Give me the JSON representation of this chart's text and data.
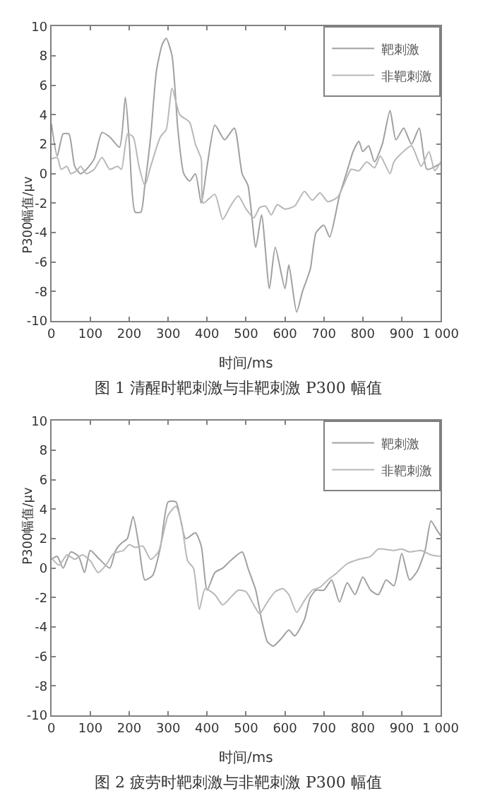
{
  "chart_data": [
    {
      "type": "line",
      "title": "图 1 清醒时靶刺激与非靶刺激 P300 幅值",
      "xlabel": "时间/ms",
      "ylabel": "P300幅值/μv",
      "legend": "top right",
      "marker": "none",
      "line_style": "solid",
      "xlim": [
        0,
        1000
      ],
      "ylim": [
        -10,
        10
      ],
      "xticks": [
        0,
        100,
        200,
        300,
        400,
        500,
        600,
        700,
        800,
        900,
        {
          "value": 1000,
          "label": "1 000"
        }
      ],
      "yticks": [
        -10,
        -8,
        -6,
        -4,
        -2,
        0,
        2,
        4,
        6,
        8,
        10
      ],
      "series": [
        {
          "name": "靶刺激",
          "color": "#a0a0a0",
          "x": [
            0,
            15,
            30,
            45,
            60,
            75,
            90,
            110,
            130,
            150,
            175,
            190,
            200,
            215,
            230,
            240,
            255,
            270,
            285,
            295,
            310,
            325,
            340,
            355,
            370,
            385,
            400,
            420,
            445,
            470,
            490,
            505,
            525,
            540,
            560,
            575,
            600,
            610,
            630,
            645,
            665,
            680,
            700,
            715,
            740,
            760,
            775,
            790,
            800,
            815,
            830,
            850,
            870,
            885,
            905,
            925,
            945,
            965,
            1000
          ],
          "values": [
            3.4,
            1.2,
            2.7,
            2.7,
            0.5,
            0.0,
            0.3,
            1.0,
            2.8,
            2.5,
            1.8,
            5.2,
            2.2,
            -2.6,
            -2.6,
            -0.8,
            2.5,
            7.0,
            8.8,
            9.2,
            8.0,
            3.0,
            0.0,
            -0.5,
            0.0,
            -2.0,
            0.5,
            3.3,
            2.3,
            3.1,
            0.0,
            -0.8,
            -5.0,
            -2.8,
            -7.8,
            -5.0,
            -7.8,
            -6.2,
            -9.4,
            -8.0,
            -6.5,
            -4.0,
            -3.5,
            -4.3,
            -1.5,
            0.2,
            1.5,
            2.2,
            1.5,
            1.9,
            0.8,
            2.0,
            4.3,
            2.3,
            3.1,
            2.0,
            3.1,
            0.3,
            0.7
          ]
        },
        {
          "name": "非靶刺激",
          "color": "#b8b8b8",
          "x": [
            0,
            15,
            25,
            40,
            50,
            65,
            75,
            90,
            110,
            130,
            150,
            170,
            180,
            196,
            210,
            225,
            240,
            255,
            280,
            295,
            310,
            330,
            355,
            370,
            385,
            390,
            420,
            440,
            460,
            480,
            500,
            520,
            535,
            550,
            565,
            580,
            600,
            625,
            650,
            670,
            690,
            710,
            735,
            760,
            770,
            790,
            810,
            830,
            845,
            870,
            880,
            900,
            925,
            950,
            970,
            985,
            1000
          ],
          "values": [
            1.0,
            1.1,
            0.3,
            0.5,
            0.0,
            0.2,
            0.5,
            0.0,
            0.3,
            1.1,
            0.3,
            0.5,
            0.3,
            2.7,
            2.5,
            0.5,
            -0.8,
            0.5,
            2.5,
            3.0,
            5.8,
            4.0,
            3.5,
            2.0,
            1.0,
            -2.0,
            -1.4,
            -3.1,
            -2.2,
            -1.5,
            -2.4,
            -3.0,
            -2.3,
            -2.2,
            -2.8,
            -2.1,
            -2.4,
            -2.2,
            -1.2,
            -1.8,
            -1.3,
            -1.9,
            -1.6,
            -0.2,
            0.3,
            0.2,
            0.8,
            0.4,
            1.2,
            0.0,
            0.8,
            1.4,
            1.9,
            0.5,
            1.5,
            0.2,
            0.8
          ]
        }
      ]
    },
    {
      "type": "line",
      "title": "图 2 疲劳时靶刺激与非靶刺激 P300 幅值",
      "xlabel": "时间/ms",
      "ylabel": "P300幅值/μv",
      "legend": "top right",
      "marker": "none",
      "line_style": "solid",
      "xlim": [
        0,
        1000
      ],
      "ylim": [
        -10,
        10
      ],
      "xticks": [
        0,
        100,
        200,
        300,
        400,
        500,
        600,
        700,
        800,
        900,
        {
          "value": 1000,
          "label": "1 000"
        }
      ],
      "yticks": [
        -10,
        -8,
        -6,
        -4,
        -2,
        0,
        2,
        4,
        6,
        8,
        10
      ],
      "series": [
        {
          "name": "靶刺激",
          "color": "#a0a0a0",
          "x": [
            0,
            15,
            30,
            50,
            70,
            85,
            100,
            120,
            150,
            165,
            180,
            195,
            210,
            225,
            240,
            260,
            280,
            300,
            320,
            345,
            370,
            385,
            400,
            420,
            440,
            460,
            490,
            505,
            525,
            540,
            555,
            570,
            590,
            610,
            625,
            650,
            665,
            680,
            700,
            720,
            740,
            760,
            780,
            800,
            820,
            840,
            860,
            880,
            900,
            920,
            940,
            960,
            975,
            990,
            1000
          ],
          "values": [
            0.6,
            0.8,
            0.0,
            1.1,
            0.8,
            -0.3,
            1.2,
            0.7,
            0.0,
            1.2,
            1.7,
            2.0,
            3.5,
            1.5,
            -0.8,
            -0.5,
            1.4,
            4.5,
            4.5,
            2.0,
            2.4,
            1.5,
            -1.5,
            -0.3,
            0.0,
            0.5,
            1.1,
            0.0,
            -1.5,
            -3.5,
            -5.0,
            -5.3,
            -4.8,
            -4.2,
            -4.6,
            -3.5,
            -2.0,
            -1.5,
            -1.5,
            -0.8,
            -2.3,
            -1.0,
            -1.8,
            -0.6,
            -1.5,
            -1.8,
            -0.8,
            -1.2,
            1.0,
            -0.8,
            -0.2,
            1.2,
            3.2,
            2.6,
            2.2
          ]
        },
        {
          "name": "非靶刺激",
          "color": "#b8b8b8",
          "x": [
            0,
            20,
            40,
            60,
            80,
            100,
            120,
            140,
            160,
            185,
            200,
            215,
            235,
            255,
            275,
            300,
            320,
            335,
            350,
            365,
            380,
            395,
            420,
            440,
            460,
            480,
            500,
            520,
            535,
            555,
            575,
            595,
            610,
            630,
            650,
            670,
            690,
            710,
            730,
            760,
            790,
            820,
            840,
            880,
            900,
            920,
            950,
            975,
            1000
          ],
          "values": [
            0.7,
            0.2,
            0.9,
            0.6,
            0.9,
            0.5,
            -0.3,
            0.2,
            1.0,
            1.2,
            1.6,
            1.4,
            1.5,
            0.6,
            1.1,
            3.6,
            4.2,
            3.0,
            0.5,
            0.0,
            -2.8,
            -1.4,
            -1.8,
            -2.5,
            -2.0,
            -1.5,
            -1.6,
            -2.5,
            -3.1,
            -2.3,
            -1.6,
            -1.4,
            -1.8,
            -3.0,
            -2.2,
            -1.5,
            -1.3,
            -0.8,
            -0.4,
            0.3,
            0.6,
            0.8,
            1.3,
            1.2,
            1.3,
            1.1,
            1.2,
            0.9,
            0.8
          ]
        }
      ]
    }
  ]
}
